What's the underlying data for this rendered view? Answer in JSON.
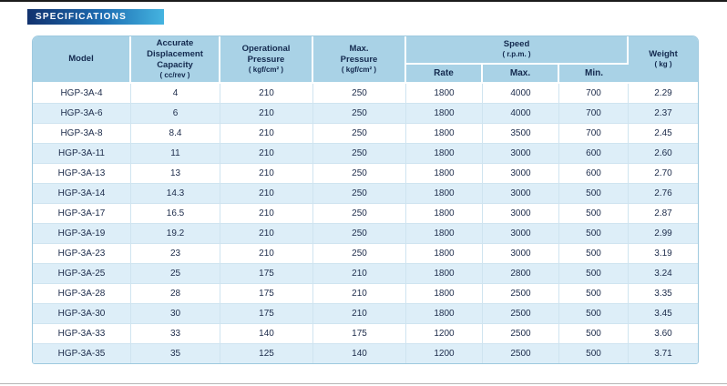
{
  "page": {
    "banner_label": "SPECIFICATIONS"
  },
  "colors": {
    "banner_gradient_start": "#12326e",
    "banner_gradient_end": "#45b4e0",
    "header_bg": "#a9d2e6",
    "row_alt_bg": "#ddeef8",
    "text": "#17294d",
    "grid_line": "#cfe4f0"
  },
  "table": {
    "headers": {
      "model_label": "Model",
      "capacity_label": "Accurate\nDisplacement\nCapacity",
      "capacity_unit": "( cc/rev )",
      "op_pressure_label": "Operational\nPressure",
      "op_pressure_unit": "( kgf/cm² )",
      "max_pressure_label": "Max.\nPressure",
      "max_pressure_unit": "( kgf/cm² )",
      "speed_label": "Speed",
      "speed_unit": "( r.p.m. )",
      "speed_sub": [
        "Rate",
        "Max.",
        "Min."
      ],
      "weight_label": "Weight",
      "weight_unit": "( kg )"
    },
    "rows": [
      [
        "HGP-3A-4",
        "4",
        "210",
        "250",
        "1800",
        "4000",
        "700",
        "2.29"
      ],
      [
        "HGP-3A-6",
        "6",
        "210",
        "250",
        "1800",
        "4000",
        "700",
        "2.37"
      ],
      [
        "HGP-3A-8",
        "8.4",
        "210",
        "250",
        "1800",
        "3500",
        "700",
        "2.45"
      ],
      [
        "HGP-3A-11",
        "11",
        "210",
        "250",
        "1800",
        "3000",
        "600",
        "2.60"
      ],
      [
        "HGP-3A-13",
        "13",
        "210",
        "250",
        "1800",
        "3000",
        "600",
        "2.70"
      ],
      [
        "HGP-3A-14",
        "14.3",
        "210",
        "250",
        "1800",
        "3000",
        "500",
        "2.76"
      ],
      [
        "HGP-3A-17",
        "16.5",
        "210",
        "250",
        "1800",
        "3000",
        "500",
        "2.87"
      ],
      [
        "HGP-3A-19",
        "19.2",
        "210",
        "250",
        "1800",
        "3000",
        "500",
        "2.99"
      ],
      [
        "HGP-3A-23",
        "23",
        "210",
        "250",
        "1800",
        "3000",
        "500",
        "3.19"
      ],
      [
        "HGP-3A-25",
        "25",
        "175",
        "210",
        "1800",
        "2800",
        "500",
        "3.24"
      ],
      [
        "HGP-3A-28",
        "28",
        "175",
        "210",
        "1800",
        "2500",
        "500",
        "3.35"
      ],
      [
        "HGP-3A-30",
        "30",
        "175",
        "210",
        "1800",
        "2500",
        "500",
        "3.45"
      ],
      [
        "HGP-3A-33",
        "33",
        "140",
        "175",
        "1200",
        "2500",
        "500",
        "3.60"
      ],
      [
        "HGP-3A-35",
        "35",
        "125",
        "140",
        "1200",
        "2500",
        "500",
        "3.71"
      ]
    ]
  }
}
